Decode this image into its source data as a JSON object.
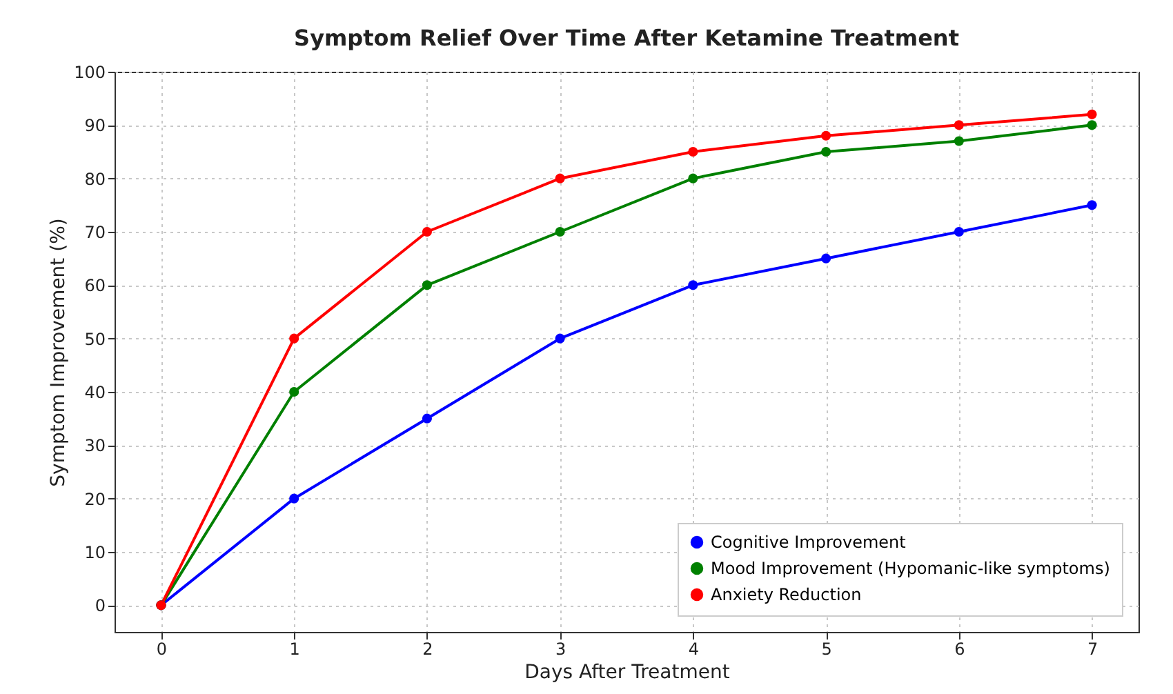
{
  "chart_data": {
    "type": "line",
    "title": "Symptom Relief Over Time After Ketamine Treatment",
    "xlabel": "Days After Treatment",
    "ylabel": "Symptom Improvement (%)",
    "x": [
      0,
      1,
      2,
      3,
      4,
      5,
      6,
      7
    ],
    "series": [
      {
        "name": "Cognitive Improvement",
        "color": "#0000ff",
        "values": [
          0,
          20,
          35,
          50,
          60,
          65,
          70,
          75
        ]
      },
      {
        "name": "Mood Improvement (Hypomanic-like symptoms)",
        "color": "#008000",
        "values": [
          0,
          40,
          60,
          70,
          80,
          85,
          87,
          90
        ]
      },
      {
        "name": "Anxiety Reduction",
        "color": "#ff0000",
        "values": [
          0,
          50,
          70,
          80,
          85,
          88,
          90,
          92
        ]
      }
    ],
    "xlim": [
      -0.35,
      7.35
    ],
    "xticks": [
      0,
      1,
      2,
      3,
      4,
      5,
      6,
      7
    ],
    "ylim": [
      -5,
      100
    ],
    "yticks": [
      0,
      10,
      20,
      30,
      40,
      50,
      60,
      70,
      80,
      90,
      100
    ],
    "grid": true,
    "legend": "bottom right",
    "marker": "circle",
    "line_style": "solid"
  }
}
